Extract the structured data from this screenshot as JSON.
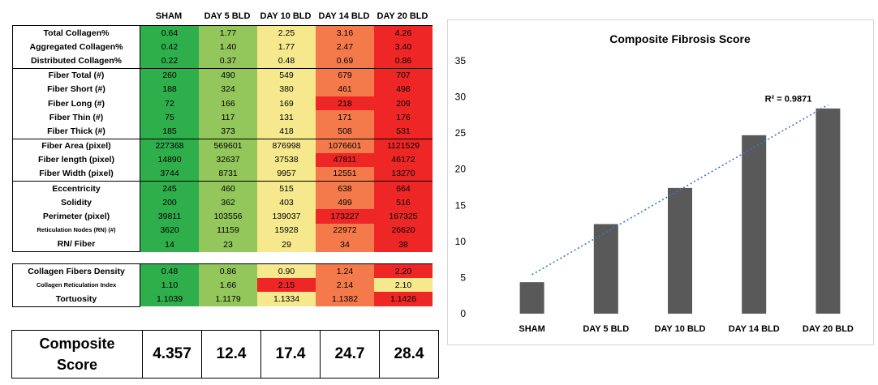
{
  "columns": [
    "SHAM",
    "DAY 5 BLD",
    "DAY 10 BLD",
    "DAY 14 BLD",
    "DAY 20 BLD"
  ],
  "colors": {
    "dark_green": "#2fae4c",
    "light_green": "#93c75c",
    "yellow": "#f6e88d",
    "orange": "#f57a4b",
    "red": "#ee2626",
    "bar": "#595959",
    "trendline": "#4472c4"
  },
  "table1": [
    {
      "label": "Total Collagen%",
      "values": [
        "0.64",
        "1.77",
        "2.25",
        "3.16",
        "4.26"
      ],
      "fills": [
        "dark_green",
        "light_green",
        "yellow",
        "orange",
        "red"
      ],
      "group_top": true
    },
    {
      "label": "Aggregated Collagen%",
      "values": [
        "0.42",
        "1.40",
        "1.77",
        "2.47",
        "3.40"
      ],
      "fills": [
        "dark_green",
        "light_green",
        "yellow",
        "orange",
        "red"
      ]
    },
    {
      "label": "Distributed Collagen%",
      "values": [
        "0.22",
        "0.37",
        "0.48",
        "0.69",
        "0.86"
      ],
      "fills": [
        "dark_green",
        "light_green",
        "yellow",
        "orange",
        "red"
      ],
      "group_bottom": true
    },
    {
      "label": "Fiber Total (#)",
      "values": [
        "260",
        "490",
        "549",
        "679",
        "707"
      ],
      "fills": [
        "dark_green",
        "light_green",
        "yellow",
        "orange",
        "red"
      ],
      "group_top": true
    },
    {
      "label": "Fiber Short (#)",
      "values": [
        "188",
        "324",
        "380",
        "461",
        "498"
      ],
      "fills": [
        "dark_green",
        "light_green",
        "yellow",
        "orange",
        "red"
      ]
    },
    {
      "label": "Fiber Long (#)",
      "values": [
        "72",
        "166",
        "169",
        "218",
        "209"
      ],
      "fills": [
        "dark_green",
        "light_green",
        "yellow",
        "red",
        "red"
      ]
    },
    {
      "label": "Fiber Thin (#)",
      "values": [
        "75",
        "117",
        "131",
        "171",
        "176"
      ],
      "fills": [
        "dark_green",
        "light_green",
        "yellow",
        "orange",
        "red"
      ]
    },
    {
      "label": "Fiber Thick (#)",
      "values": [
        "185",
        "373",
        "418",
        "508",
        "531"
      ],
      "fills": [
        "dark_green",
        "light_green",
        "yellow",
        "orange",
        "red"
      ],
      "group_bottom": true
    },
    {
      "label": "Fiber Area (pixel)",
      "values": [
        "227368",
        "569601",
        "876998",
        "1076601",
        "1121529"
      ],
      "fills": [
        "dark_green",
        "light_green",
        "yellow",
        "orange",
        "red"
      ],
      "group_top": true
    },
    {
      "label": "Fiber length (pixel)",
      "values": [
        "14890",
        "32637",
        "37538",
        "47811",
        "46172"
      ],
      "fills": [
        "dark_green",
        "light_green",
        "yellow",
        "red",
        "red"
      ]
    },
    {
      "label": "Fiber Width (pixel)",
      "values": [
        "3744",
        "8731",
        "9957",
        "12551",
        "13270"
      ],
      "fills": [
        "dark_green",
        "light_green",
        "yellow",
        "orange",
        "red"
      ],
      "group_bottom": true
    },
    {
      "label": "Eccentricity",
      "values": [
        "245",
        "460",
        "515",
        "638",
        "664"
      ],
      "fills": [
        "dark_green",
        "light_green",
        "yellow",
        "orange",
        "red"
      ],
      "group_top": true
    },
    {
      "label": "Solidity",
      "values": [
        "200",
        "362",
        "403",
        "499",
        "516"
      ],
      "fills": [
        "dark_green",
        "light_green",
        "yellow",
        "orange",
        "red"
      ]
    },
    {
      "label": "Perimeter (pixel)",
      "values": [
        "39811",
        "103556",
        "139037",
        "173227",
        "167325"
      ],
      "fills": [
        "dark_green",
        "light_green",
        "yellow",
        "red",
        "red"
      ]
    },
    {
      "label": "Reticulation Nodes (RN) (#)",
      "values": [
        "3620",
        "11159",
        "15928",
        "22972",
        "26620"
      ],
      "fills": [
        "dark_green",
        "light_green",
        "yellow",
        "orange",
        "red"
      ],
      "small": true
    },
    {
      "label": "RN/ Fiber",
      "values": [
        "14",
        "23",
        "29",
        "34",
        "38"
      ],
      "fills": [
        "dark_green",
        "light_green",
        "yellow",
        "orange",
        "red"
      ],
      "group_bottom": true
    }
  ],
  "table2": [
    {
      "label": "Collagen Fibers Density",
      "values": [
        "0.48",
        "0.86",
        "0.90",
        "1.24",
        "2.20"
      ],
      "fills": [
        "dark_green",
        "light_green",
        "yellow",
        "orange",
        "red"
      ],
      "group_top": true
    },
    {
      "label": "Collagen Reticulation Index",
      "values": [
        "1.10",
        "1.66",
        "2.15",
        "2.14",
        "2.10"
      ],
      "fills": [
        "dark_green",
        "light_green",
        "red",
        "orange",
        "yellow"
      ],
      "small": true
    },
    {
      "label": "Tortuosity",
      "values": [
        "1.1039",
        "1.1179",
        "1.1334",
        "1.1382",
        "1.1426"
      ],
      "fills": [
        "dark_green",
        "light_green",
        "yellow",
        "orange",
        "red"
      ],
      "group_bottom": true
    }
  ],
  "composite": {
    "label_line1": "Composite",
    "label_line2": "Score",
    "values": [
      "4.357",
      "12.4",
      "17.4",
      "24.7",
      "28.4"
    ]
  },
  "chart_data": {
    "type": "bar",
    "title": "Composite Fibrosis Score",
    "categories": [
      "SHAM",
      "DAY 5 BLD",
      "DAY 10 BLD",
      "DAY 14 BLD",
      "DAY 20 BLD"
    ],
    "values": [
      4.357,
      12.4,
      17.4,
      24.7,
      28.4
    ],
    "ylim": [
      0,
      35
    ],
    "yticks": [
      "0",
      "5",
      "10",
      "15",
      "20",
      "25",
      "30",
      "35"
    ],
    "grid": false,
    "trendline": {
      "type": "linear",
      "label": "R² = 0.9871",
      "values": [
        5.4,
        11.3,
        17.1,
        23.0,
        28.9
      ]
    }
  }
}
